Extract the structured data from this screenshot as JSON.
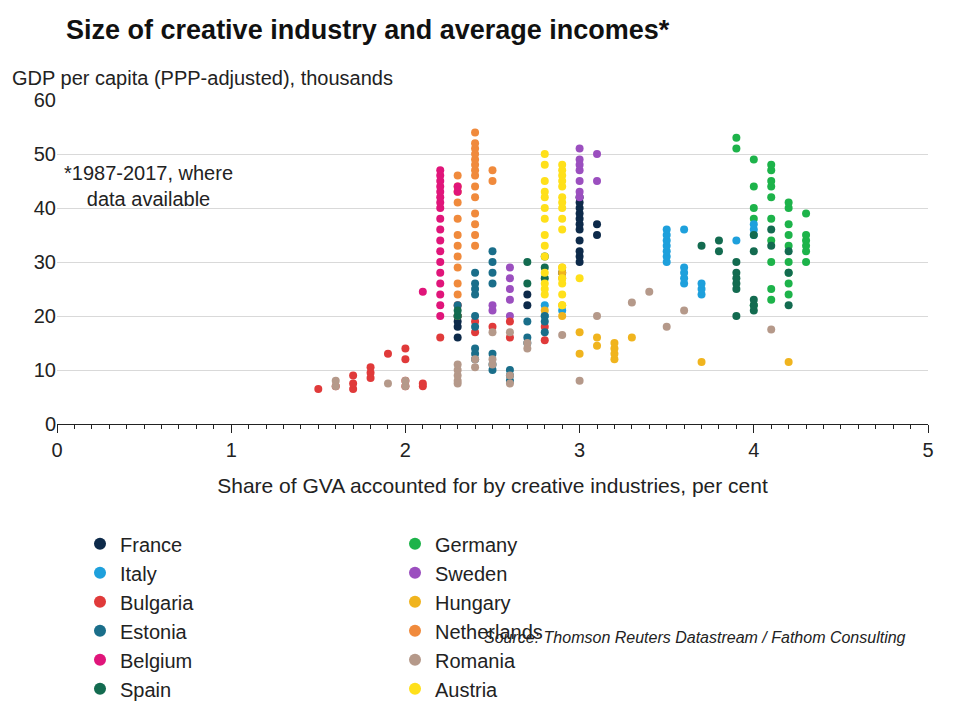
{
  "chart_data": {
    "type": "scatter",
    "title": "Size of creative industry and average incomes*",
    "subtitle": "GDP per capita (PPP-adjusted), thousands",
    "note": "*1987-2017, where\ndata available",
    "source": "Source: Thomson Reuters Datastream / Fathom Consulting",
    "x_label": "Share of GVA accounted for by creative industries, per cent",
    "xlim": [
      0,
      5
    ],
    "xticks": [
      0,
      1,
      2,
      3,
      4,
      5
    ],
    "ylim": [
      0,
      60
    ],
    "yticks": [
      0,
      10,
      20,
      30,
      40,
      50,
      60
    ],
    "grid": true,
    "legend": "bottom",
    "marker": "circle",
    "series": [
      {
        "name": "France",
        "color": "#0d2a4a",
        "x": [
          2.3,
          2.3,
          2.3,
          2.3,
          2.7,
          2.7,
          2.9,
          3.0,
          3.0,
          3.0,
          3.0,
          3.0,
          3.0,
          3.0,
          3.0,
          3.0,
          3.0,
          3.0,
          3.1,
          3.1
        ],
        "values": [
          16,
          18,
          19,
          20,
          22,
          24,
          28,
          30,
          31,
          32,
          34,
          36,
          37,
          38,
          39,
          40,
          41,
          42,
          35,
          37
        ]
      },
      {
        "name": "Germany",
        "color": "#1db34a",
        "x": [
          3.9,
          3.9,
          4.0,
          4.0,
          4.0,
          4.0,
          4.0,
          4.1,
          4.1,
          4.1,
          4.1,
          4.1,
          4.1,
          4.1,
          4.1,
          4.1,
          4.1,
          4.2,
          4.2,
          4.2,
          4.2,
          4.2,
          4.2,
          4.2,
          4.2,
          4.2,
          4.3,
          4.3,
          4.3,
          4.3,
          4.3,
          4.3
        ],
        "values": [
          51,
          53,
          38,
          40,
          44,
          49,
          22,
          23,
          25,
          30,
          34,
          38,
          42,
          44,
          45,
          47,
          48,
          24,
          26,
          28,
          30,
          33,
          35,
          37,
          40,
          41,
          30,
          32,
          33,
          34,
          35,
          39
        ]
      },
      {
        "name": "Italy",
        "color": "#1ea0dc",
        "x": [
          2.8,
          2.8,
          2.9,
          3.5,
          3.5,
          3.5,
          3.5,
          3.5,
          3.5,
          3.5,
          3.6,
          3.6,
          3.6,
          3.6,
          3.6,
          3.7,
          3.7,
          3.7,
          3.9,
          4.0,
          4.0,
          4.0
        ],
        "values": [
          20,
          22,
          21,
          30,
          31,
          32,
          33,
          34,
          35,
          36,
          26,
          27,
          28,
          29,
          36,
          24,
          25,
          26,
          34,
          35,
          36,
          37
        ]
      },
      {
        "name": "Sweden",
        "color": "#9b4fbf",
        "x": [
          2.5,
          2.5,
          2.6,
          2.6,
          2.6,
          2.6,
          2.6,
          3.0,
          3.0,
          3.0,
          3.0,
          3.0,
          3.0,
          3.0,
          3.1,
          3.1
        ],
        "values": [
          21,
          22,
          20,
          23,
          25,
          27,
          29,
          42,
          43,
          45,
          47,
          48,
          49,
          51,
          45,
          50
        ]
      },
      {
        "name": "Bulgaria",
        "color": "#e03a3a",
        "x": [
          1.5,
          1.6,
          1.7,
          1.7,
          1.7,
          1.8,
          1.8,
          1.8,
          1.9,
          2.0,
          2.0,
          2.0,
          2.0,
          2.1,
          2.1,
          2.2,
          2.3,
          2.4,
          2.4,
          2.5,
          2.6,
          2.6,
          2.8,
          2.8
        ],
        "values": [
          6.5,
          7,
          6.5,
          7.5,
          9,
          8.5,
          9.5,
          10.5,
          13,
          7,
          8,
          12,
          14,
          7,
          7.5,
          16,
          22,
          17,
          19,
          18,
          16,
          19,
          15.5,
          18
        ]
      },
      {
        "name": "Hungary",
        "color": "#f0b41e",
        "x": [
          2.8,
          2.9,
          2.9,
          2.9,
          2.9,
          2.9,
          3.0,
          3.0,
          3.1,
          3.1,
          3.2,
          3.2,
          3.2,
          3.2,
          3.3,
          3.7,
          4.2
        ],
        "values": [
          21,
          20,
          22,
          27,
          28,
          29,
          13,
          17,
          14.5,
          16,
          12,
          13,
          14,
          15,
          16,
          11.5,
          11.5
        ]
      },
      {
        "name": "Estonia",
        "color": "#1a6e8a",
        "x": [
          2.3,
          2.3,
          2.4,
          2.4,
          2.4,
          2.4,
          2.4,
          2.4,
          2.4,
          2.4,
          2.4,
          2.5,
          2.5,
          2.5,
          2.5,
          2.5,
          2.5,
          2.5,
          2.6,
          2.6,
          2.6,
          2.7,
          2.7,
          2.7,
          2.8,
          2.8,
          2.8
        ],
        "values": [
          20,
          22,
          12,
          13,
          14,
          18,
          20,
          24,
          25,
          26,
          28,
          10,
          11,
          13,
          26,
          28,
          30,
          32,
          8,
          9,
          10,
          15,
          16,
          19,
          17,
          19,
          20
        ]
      },
      {
        "name": "Netherlands",
        "color": "#f08a3c",
        "x": [
          2.3,
          2.3,
          2.3,
          2.3,
          2.3,
          2.3,
          2.3,
          2.3,
          2.3,
          2.3,
          2.3,
          2.3,
          2.4,
          2.4,
          2.4,
          2.4,
          2.4,
          2.4,
          2.4,
          2.4,
          2.4,
          2.4,
          2.4,
          2.4,
          2.4,
          2.4,
          2.5,
          2.5
        ],
        "values": [
          20,
          24,
          26,
          29,
          31,
          33,
          35,
          38,
          41,
          43,
          44,
          46,
          33,
          35,
          37,
          39,
          42,
          44,
          46,
          47,
          48,
          49,
          50,
          51,
          52,
          54,
          45,
          47
        ]
      },
      {
        "name": "Belgium",
        "color": "#e0157a",
        "x": [
          2.1,
          2.2,
          2.2,
          2.2,
          2.2,
          2.2,
          2.2,
          2.2,
          2.2,
          2.2,
          2.2,
          2.2,
          2.2,
          2.2,
          2.2,
          2.2,
          2.2,
          2.2,
          2.2,
          2.3,
          2.3
        ],
        "values": [
          24.5,
          20,
          22,
          24,
          26,
          28,
          30,
          32,
          34,
          36,
          38,
          40,
          41,
          42,
          43,
          44,
          45,
          46,
          47,
          43,
          44
        ]
      },
      {
        "name": "Romania",
        "color": "#b5998a",
        "x": [
          1.6,
          1.6,
          1.9,
          2.0,
          2.0,
          2.3,
          2.3,
          2.3,
          2.3,
          2.3,
          2.4,
          2.4,
          2.5,
          2.5,
          2.5,
          2.6,
          2.6,
          2.6,
          2.7,
          2.7,
          2.9,
          3.0,
          3.1,
          3.3,
          3.4,
          3.5,
          3.6,
          4.1
        ],
        "values": [
          7,
          8,
          7.5,
          7,
          8,
          7.5,
          8,
          9,
          10,
          11,
          10.5,
          12,
          11,
          12,
          17,
          7.5,
          9,
          17,
          14,
          15,
          16.5,
          8,
          20,
          22.5,
          24.5,
          18,
          21,
          17.5
        ]
      },
      {
        "name": "Spain",
        "color": "#136b50",
        "x": [
          2.3,
          2.3,
          2.7,
          2.7,
          2.8,
          2.8,
          2.8,
          3.7,
          3.8,
          3.8,
          3.9,
          3.9,
          3.9,
          3.9,
          3.9,
          3.9,
          4.0,
          4.0,
          4.0,
          4.0,
          4.0,
          4.1,
          4.1,
          4.2,
          4.2,
          4.2
        ],
        "values": [
          20,
          21,
          26,
          30,
          27,
          29,
          31,
          33,
          32,
          34,
          20,
          25,
          26,
          27,
          28,
          30,
          21,
          22,
          23,
          32,
          35,
          33,
          36,
          22,
          28,
          32
        ]
      },
      {
        "name": "Austria",
        "color": "#ffe01a",
        "x": [
          2.8,
          2.8,
          2.8,
          2.8,
          2.8,
          2.8,
          2.8,
          2.8,
          2.8,
          2.8,
          2.8,
          2.8,
          2.8,
          2.8,
          2.9,
          2.9,
          2.9,
          2.9,
          2.9,
          2.9,
          2.9,
          2.9,
          2.9,
          2.9,
          2.9,
          2.9,
          2.9,
          2.9,
          2.9,
          3.0
        ],
        "values": [
          24,
          25,
          26,
          28,
          31,
          33,
          35,
          38,
          40,
          42,
          43,
          45,
          48,
          50,
          22,
          24,
          26,
          27,
          29,
          36,
          38,
          40,
          41,
          42,
          44,
          45,
          46,
          47,
          48,
          27
        ]
      }
    ]
  }
}
